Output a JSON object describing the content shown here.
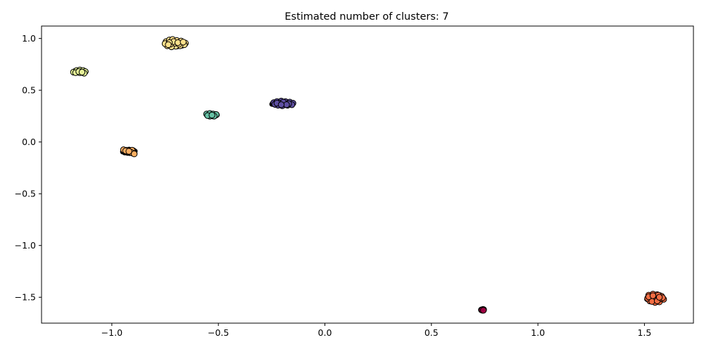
{
  "chart_data": {
    "type": "scatter",
    "title": "Estimated number of clusters: 7",
    "xlabel": "",
    "ylabel": "",
    "xlim": [
      -1.33,
      1.73
    ],
    "ylim": [
      -1.75,
      1.12
    ],
    "xticks": [
      -1.0,
      -0.5,
      0.0,
      0.5,
      1.0,
      1.5
    ],
    "xtick_labels": [
      "−1.0",
      "−0.5",
      "0.0",
      "0.5",
      "1.0",
      "1.5"
    ],
    "yticks": [
      1.0,
      0.5,
      0.0,
      -0.5,
      -1.0,
      -1.5
    ],
    "ytick_labels": [
      "1.0",
      "0.5",
      "0.0",
      "−0.5",
      "−1.0",
      "−1.5"
    ],
    "grid": false,
    "clusters": [
      {
        "label": 0,
        "color": "#9e0142",
        "center": [
          0.74,
          -1.62
        ],
        "spread": [
          0.008,
          0.004
        ],
        "points": [
          [
            0.735,
            -1.622
          ],
          [
            0.745,
            -1.62
          ],
          [
            0.74,
            -1.625
          ],
          [
            0.742,
            -1.618
          ],
          [
            0.738,
            -1.624
          ],
          [
            0.744,
            -1.626
          ]
        ]
      },
      {
        "label": 1,
        "color": "#f46d43",
        "center": [
          1.55,
          -1.51
        ],
        "spread": [
          0.04,
          0.04
        ],
        "points": [
          [
            1.52,
            -1.48
          ],
          [
            1.54,
            -1.47
          ],
          [
            1.56,
            -1.475
          ],
          [
            1.58,
            -1.49
          ],
          [
            1.59,
            -1.52
          ],
          [
            1.57,
            -1.545
          ],
          [
            1.55,
            -1.55
          ],
          [
            1.525,
            -1.535
          ],
          [
            1.515,
            -1.51
          ],
          [
            1.53,
            -1.5
          ],
          [
            1.555,
            -1.505
          ],
          [
            1.575,
            -1.515
          ],
          [
            1.545,
            -1.525
          ],
          [
            1.565,
            -1.48
          ],
          [
            1.535,
            -1.54
          ],
          [
            1.585,
            -1.505
          ],
          [
            1.52,
            -1.495
          ],
          [
            1.56,
            -1.535
          ],
          [
            1.54,
            -1.485
          ],
          [
            1.57,
            -1.5
          ]
        ]
      },
      {
        "label": 2,
        "color": "#fdae61",
        "center": [
          -0.92,
          -0.09
        ],
        "spread": [
          0.03,
          0.02
        ],
        "points": [
          [
            -0.945,
            -0.075
          ],
          [
            -0.93,
            -0.08
          ],
          [
            -0.915,
            -0.085
          ],
          [
            -0.905,
            -0.08
          ],
          [
            -0.9,
            -0.11
          ],
          [
            -0.91,
            -0.1
          ],
          [
            -0.925,
            -0.095
          ],
          [
            -0.935,
            -0.085
          ],
          [
            -0.92,
            -0.09
          ],
          [
            -0.895,
            -0.115
          ]
        ]
      },
      {
        "label": 3,
        "color": "#fee08b",
        "center": [
          -0.7,
          0.95
        ],
        "spread": [
          0.05,
          0.03
        ],
        "points": [
          [
            -0.745,
            0.97
          ],
          [
            -0.73,
            0.985
          ],
          [
            -0.715,
            0.99
          ],
          [
            -0.695,
            0.98
          ],
          [
            -0.675,
            0.975
          ],
          [
            -0.655,
            0.955
          ],
          [
            -0.66,
            0.94
          ],
          [
            -0.68,
            0.93
          ],
          [
            -0.7,
            0.925
          ],
          [
            -0.72,
            0.92
          ],
          [
            -0.74,
            0.93
          ],
          [
            -0.75,
            0.95
          ],
          [
            -0.705,
            0.955
          ],
          [
            -0.685,
            0.945
          ],
          [
            -0.725,
            0.945
          ],
          [
            -0.71,
            0.97
          ],
          [
            -0.69,
            0.96
          ],
          [
            -0.73,
            0.96
          ],
          [
            -0.665,
            0.965
          ],
          [
            -0.735,
            0.94
          ]
        ]
      },
      {
        "label": 4,
        "color": "#e6f598",
        "center": [
          -1.15,
          0.68
        ],
        "spread": [
          0.03,
          0.015
        ],
        "points": [
          [
            -1.18,
            0.675
          ],
          [
            -1.165,
            0.69
          ],
          [
            -1.15,
            0.695
          ],
          [
            -1.135,
            0.69
          ],
          [
            -1.125,
            0.68
          ],
          [
            -1.13,
            0.665
          ],
          [
            -1.15,
            0.67
          ],
          [
            -1.17,
            0.67
          ],
          [
            -1.155,
            0.68
          ],
          [
            -1.14,
            0.675
          ]
        ]
      },
      {
        "label": 5,
        "color": "#66c2a5",
        "center": [
          -0.53,
          0.26
        ],
        "spread": [
          0.025,
          0.015
        ],
        "points": [
          [
            -0.555,
            0.27
          ],
          [
            -0.54,
            0.275
          ],
          [
            -0.525,
            0.27
          ],
          [
            -0.51,
            0.265
          ],
          [
            -0.52,
            0.25
          ],
          [
            -0.54,
            0.25
          ],
          [
            -0.55,
            0.255
          ],
          [
            -0.53,
            0.26
          ]
        ]
      },
      {
        "label": 6,
        "color": "#5e4fa2",
        "center": [
          -0.2,
          0.37
        ],
        "spread": [
          0.05,
          0.02
        ],
        "points": [
          [
            -0.24,
            0.38
          ],
          [
            -0.225,
            0.39
          ],
          [
            -0.205,
            0.395
          ],
          [
            -0.185,
            0.39
          ],
          [
            -0.165,
            0.385
          ],
          [
            -0.15,
            0.375
          ],
          [
            -0.155,
            0.36
          ],
          [
            -0.175,
            0.355
          ],
          [
            -0.2,
            0.35
          ],
          [
            -0.22,
            0.355
          ],
          [
            -0.235,
            0.365
          ],
          [
            -0.21,
            0.375
          ],
          [
            -0.19,
            0.37
          ],
          [
            -0.17,
            0.37
          ],
          [
            -0.225,
            0.375
          ],
          [
            -0.195,
            0.385
          ],
          [
            -0.18,
            0.36
          ],
          [
            -0.205,
            0.36
          ]
        ]
      }
    ]
  }
}
